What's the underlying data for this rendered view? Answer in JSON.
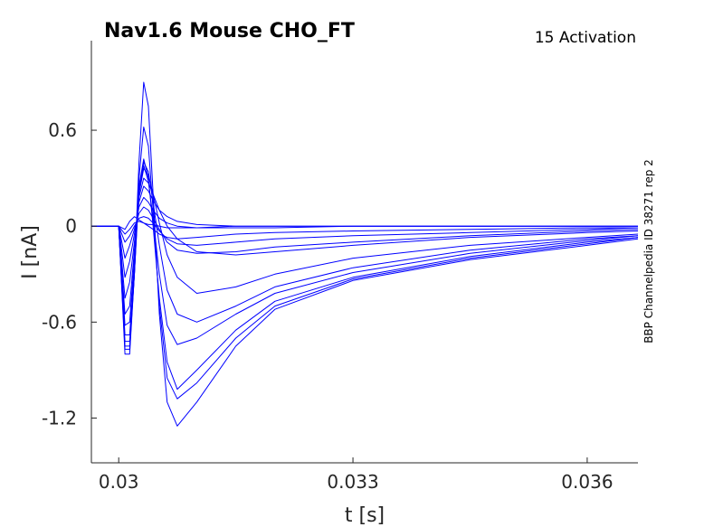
{
  "chart_data": {
    "type": "line",
    "title": "Nav1.6  Mouse  CHO_FT",
    "subtitle": "15  Activation",
    "side_note": "BBP Channelpedia ID 38271 rep 2",
    "xlabel": "t [s]",
    "ylabel": "I [nA]",
    "xlim": [
      0.02965,
      0.03665
    ],
    "ylim": [
      -1.48,
      1.16
    ],
    "xticks": [
      0.03,
      0.033,
      0.036
    ],
    "xtick_labels": [
      "0.03",
      "0.033",
      "0.036"
    ],
    "yticks": [
      0.6,
      0,
      -0.6,
      -1.2
    ],
    "ytick_labels": [
      "0.6",
      "0",
      "-0.6",
      "-1.2"
    ],
    "grid": false,
    "line_color": "#0000ff",
    "series": [
      {
        "x": [
          0.02965,
          0.03,
          0.03008,
          0.03014,
          0.0302,
          0.03026,
          0.03032,
          0.03038,
          0.03044,
          0.03052,
          0.03062,
          0.03075,
          0.031,
          0.0315,
          0.032,
          0.033,
          0.0345,
          0.036,
          0.03665
        ],
        "y": [
          0,
          0,
          -0.02,
          0.03,
          0.06,
          0.04,
          0.02,
          0.01,
          0.01,
          0.0,
          -0.01,
          -0.01,
          -0.01,
          0.0,
          0.0,
          0.0,
          0.0,
          0.0,
          0.0
        ]
      },
      {
        "x": [
          0.02965,
          0.03,
          0.03008,
          0.03014,
          0.0302,
          0.03026,
          0.03032,
          0.03038,
          0.03044,
          0.03052,
          0.03062,
          0.03075,
          0.031,
          0.0315,
          0.032,
          0.033,
          0.0345,
          0.036,
          0.03665
        ],
        "y": [
          0,
          0,
          -0.05,
          -0.02,
          0.02,
          0.03,
          0.02,
          0.0,
          -0.02,
          -0.05,
          -0.07,
          -0.08,
          -0.07,
          -0.05,
          -0.04,
          -0.03,
          -0.02,
          -0.01,
          -0.01
        ]
      },
      {
        "x": [
          0.02965,
          0.03,
          0.03008,
          0.03014,
          0.0302,
          0.03026,
          0.03032,
          0.03038,
          0.03044,
          0.03052,
          0.03062,
          0.03075,
          0.031,
          0.0315,
          0.032,
          0.033,
          0.0345,
          0.036,
          0.03665
        ],
        "y": [
          0,
          0,
          -0.1,
          -0.06,
          0.0,
          0.05,
          0.06,
          0.05,
          0.02,
          -0.03,
          -0.08,
          -0.11,
          -0.12,
          -0.1,
          -0.08,
          -0.06,
          -0.04,
          -0.02,
          -0.01
        ]
      },
      {
        "x": [
          0.02965,
          0.03,
          0.03008,
          0.03014,
          0.0302,
          0.03026,
          0.03032,
          0.03038,
          0.03044,
          0.03052,
          0.03062,
          0.03075,
          0.031,
          0.0315,
          0.032,
          0.033,
          0.0345,
          0.036,
          0.03665
        ],
        "y": [
          0,
          0,
          -0.2,
          -0.12,
          -0.02,
          0.08,
          0.12,
          0.1,
          0.05,
          -0.02,
          -0.1,
          -0.15,
          -0.17,
          -0.16,
          -0.13,
          -0.1,
          -0.06,
          -0.03,
          -0.02
        ]
      },
      {
        "x": [
          0.02965,
          0.03,
          0.03008,
          0.03014,
          0.0302,
          0.03026,
          0.03032,
          0.03038,
          0.03044,
          0.03052,
          0.03062,
          0.03075,
          0.031,
          0.0315,
          0.032,
          0.033,
          0.0345,
          0.036,
          0.03665
        ],
        "y": [
          0,
          0,
          -0.32,
          -0.22,
          -0.05,
          0.12,
          0.18,
          0.15,
          0.1,
          0.05,
          0.02,
          0.0,
          -0.01,
          -0.01,
          -0.01,
          0.0,
          0.0,
          0.0,
          0.0
        ]
      },
      {
        "x": [
          0.02965,
          0.03,
          0.03008,
          0.03014,
          0.0302,
          0.03026,
          0.03032,
          0.03038,
          0.03044,
          0.03052,
          0.03062,
          0.03075,
          0.031,
          0.0315,
          0.032,
          0.033,
          0.0345,
          0.036,
          0.03665
        ],
        "y": [
          0,
          0,
          -0.45,
          -0.35,
          -0.1,
          0.15,
          0.25,
          0.22,
          0.16,
          0.1,
          0.06,
          0.03,
          0.01,
          0.0,
          0.0,
          0.0,
          0.0,
          0.0,
          0.0
        ]
      },
      {
        "x": [
          0.02965,
          0.03,
          0.03008,
          0.03014,
          0.0302,
          0.03026,
          0.03032,
          0.03038,
          0.03044,
          0.03052,
          0.03062,
          0.03075,
          0.031,
          0.0315,
          0.032,
          0.033,
          0.0345,
          0.036,
          0.03665
        ],
        "y": [
          0,
          0,
          -0.55,
          -0.5,
          -0.15,
          0.18,
          0.3,
          0.27,
          0.2,
          0.1,
          0.0,
          -0.08,
          -0.16,
          -0.18,
          -0.16,
          -0.12,
          -0.07,
          -0.04,
          -0.03
        ]
      },
      {
        "x": [
          0.02965,
          0.03,
          0.03008,
          0.03014,
          0.0302,
          0.03026,
          0.03032,
          0.03038,
          0.03044,
          0.03052,
          0.03062,
          0.03075,
          0.031,
          0.0315,
          0.032,
          0.033,
          0.0345,
          0.036,
          0.03665
        ],
        "y": [
          0,
          0,
          -0.62,
          -0.6,
          -0.2,
          0.2,
          0.36,
          0.32,
          0.2,
          0.02,
          -0.18,
          -0.32,
          -0.42,
          -0.38,
          -0.3,
          -0.2,
          -0.12,
          -0.07,
          -0.05
        ]
      },
      {
        "x": [
          0.02965,
          0.03,
          0.03008,
          0.03014,
          0.0302,
          0.03026,
          0.03032,
          0.03038,
          0.03044,
          0.03052,
          0.03062,
          0.03075,
          0.031,
          0.0315,
          0.032,
          0.033,
          0.0345,
          0.036,
          0.03665
        ],
        "y": [
          0,
          0,
          -0.68,
          -0.68,
          -0.25,
          0.22,
          0.4,
          0.34,
          0.15,
          -0.12,
          -0.4,
          -0.55,
          -0.6,
          -0.5,
          -0.38,
          -0.26,
          -0.15,
          -0.08,
          -0.06
        ]
      },
      {
        "x": [
          0.02965,
          0.03,
          0.03008,
          0.03014,
          0.0302,
          0.03026,
          0.03032,
          0.03038,
          0.03044,
          0.03052,
          0.03062,
          0.03075,
          0.031,
          0.0315,
          0.032,
          0.033,
          0.0345,
          0.036,
          0.03665
        ],
        "y": [
          0,
          0,
          -0.72,
          -0.72,
          -0.3,
          0.22,
          0.38,
          0.28,
          0.05,
          -0.3,
          -0.62,
          -0.74,
          -0.7,
          -0.55,
          -0.42,
          -0.29,
          -0.17,
          -0.09,
          -0.06
        ]
      },
      {
        "x": [
          0.02965,
          0.03,
          0.03008,
          0.03014,
          0.0302,
          0.03026,
          0.03032,
          0.03038,
          0.03044,
          0.03052,
          0.03062,
          0.03075,
          0.031,
          0.0315,
          0.032,
          0.033,
          0.0345,
          0.036,
          0.03665
        ],
        "y": [
          0,
          0,
          -0.75,
          -0.75,
          -0.3,
          0.25,
          0.42,
          0.3,
          0.0,
          -0.45,
          -0.85,
          -1.02,
          -0.9,
          -0.65,
          -0.47,
          -0.32,
          -0.19,
          -0.1,
          -0.07
        ]
      },
      {
        "x": [
          0.02965,
          0.03,
          0.03008,
          0.03014,
          0.0302,
          0.03026,
          0.03032,
          0.03038,
          0.03044,
          0.03052,
          0.03062,
          0.03075,
          0.031,
          0.0315,
          0.032,
          0.033,
          0.0345,
          0.036,
          0.03665
        ],
        "y": [
          0,
          0,
          -0.77,
          -0.77,
          -0.3,
          0.3,
          0.62,
          0.5,
          0.1,
          -0.5,
          -0.95,
          -1.08,
          -0.98,
          -0.7,
          -0.5,
          -0.33,
          -0.2,
          -0.11,
          -0.07
        ]
      },
      {
        "x": [
          0.02965,
          0.03,
          0.03008,
          0.03014,
          0.0302,
          0.03026,
          0.03032,
          0.03038,
          0.03044,
          0.03052,
          0.03062,
          0.03075,
          0.031,
          0.0315,
          0.032,
          0.033,
          0.0345,
          0.036,
          0.03665
        ],
        "y": [
          0,
          0,
          -0.8,
          -0.8,
          -0.3,
          0.4,
          0.9,
          0.75,
          0.2,
          -0.55,
          -1.1,
          -1.25,
          -1.1,
          -0.75,
          -0.52,
          -0.34,
          -0.21,
          -0.12,
          -0.08
        ]
      }
    ]
  }
}
